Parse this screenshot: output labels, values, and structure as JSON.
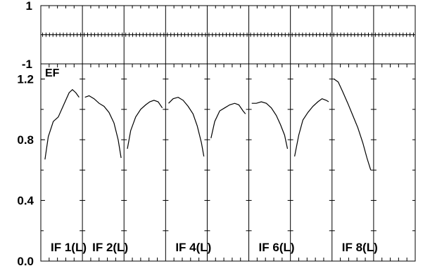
{
  "chart_data": {
    "type": "line",
    "panels": 9,
    "top_strip": {
      "y_ticks": [
        "1",
        "-1"
      ],
      "ylim": [
        -1,
        1
      ],
      "baseline": 0
    },
    "main": {
      "ylabel": "EF",
      "ylim": [
        0.0,
        1.3
      ],
      "y_ticks": [
        {
          "value": 1.2,
          "label": "1.2"
        },
        {
          "value": 0.8,
          "label": "0.8"
        },
        {
          "value": 0.4,
          "label": "0.4"
        },
        {
          "value": 0.0,
          "label": "0.0"
        }
      ]
    },
    "panel_labels": [
      {
        "panel": 0,
        "text": "IF 1(L)"
      },
      {
        "panel": 1,
        "text": "IF 2(L)"
      },
      {
        "panel": 3,
        "text": "IF 4(L)"
      },
      {
        "panel": 5,
        "text": "IF 6(L)"
      },
      {
        "panel": 7,
        "text": "IF 8(L)"
      }
    ],
    "series": [
      {
        "panel": 0,
        "x": [
          0.1,
          0.18,
          0.3,
          0.42,
          0.55,
          0.68,
          0.76,
          0.84,
          0.92
        ],
        "y": [
          0.67,
          0.82,
          0.92,
          0.95,
          1.03,
          1.11,
          1.13,
          1.11,
          1.08
        ]
      },
      {
        "panel": 1,
        "x": [
          0.06,
          0.16,
          0.28,
          0.4,
          0.52,
          0.64,
          0.76,
          0.86,
          0.93
        ],
        "y": [
          1.08,
          1.09,
          1.07,
          1.04,
          1.02,
          0.98,
          0.91,
          0.8,
          0.68
        ]
      },
      {
        "panel": 2,
        "x": [
          0.08,
          0.16,
          0.28,
          0.4,
          0.52,
          0.62,
          0.72,
          0.82,
          0.92
        ],
        "y": [
          0.74,
          0.86,
          0.95,
          1.0,
          1.03,
          1.05,
          1.06,
          1.05,
          1.01
        ]
      },
      {
        "panel": 3,
        "x": [
          0.07,
          0.18,
          0.3,
          0.42,
          0.54,
          0.66,
          0.76,
          0.86,
          0.92
        ],
        "y": [
          1.04,
          1.07,
          1.08,
          1.06,
          1.02,
          0.97,
          0.89,
          0.78,
          0.69
        ]
      },
      {
        "panel": 4,
        "x": [
          0.09,
          0.18,
          0.3,
          0.42,
          0.54,
          0.66,
          0.76,
          0.86,
          0.92
        ],
        "y": [
          0.81,
          0.92,
          0.99,
          1.01,
          1.03,
          1.04,
          1.03,
          0.99,
          0.97
        ]
      },
      {
        "panel": 5,
        "x": [
          0.07,
          0.18,
          0.3,
          0.42,
          0.54,
          0.66,
          0.76,
          0.86,
          0.93
        ],
        "y": [
          1.04,
          1.04,
          1.05,
          1.04,
          1.01,
          0.96,
          0.9,
          0.83,
          0.74
        ]
      },
      {
        "panel": 6,
        "x": [
          0.1,
          0.2,
          0.3,
          0.42,
          0.54,
          0.66,
          0.76,
          0.86,
          0.92
        ],
        "y": [
          0.69,
          0.83,
          0.93,
          0.98,
          1.02,
          1.05,
          1.07,
          1.06,
          1.05
        ]
      },
      {
        "panel": 7,
        "x": [
          0.05,
          0.15,
          0.25,
          0.38,
          0.5,
          0.62,
          0.74,
          0.84,
          0.93
        ],
        "y": [
          1.2,
          1.18,
          1.12,
          1.04,
          0.96,
          0.88,
          0.78,
          0.68,
          0.6
        ]
      }
    ]
  }
}
